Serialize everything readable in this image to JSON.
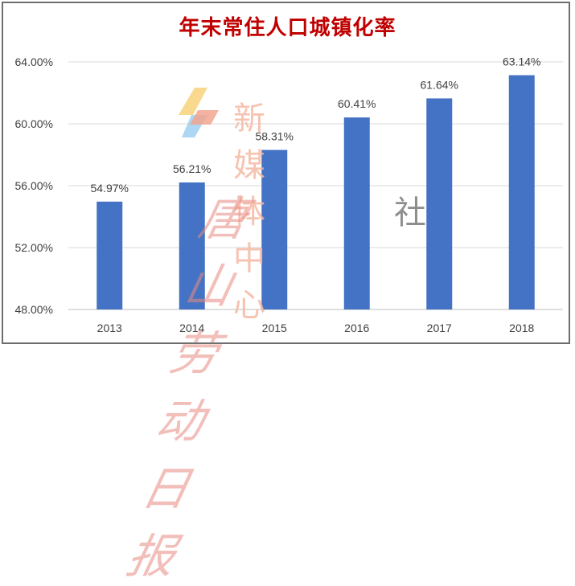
{
  "chart_data": {
    "type": "bar",
    "title": "年末常住人口城镇化率",
    "categories": [
      "2013",
      "2014",
      "2015",
      "2016",
      "2017",
      "2018"
    ],
    "values": [
      54.97,
      56.21,
      58.31,
      60.41,
      61.64,
      63.14
    ],
    "value_labels": [
      "54.97%",
      "56.21%",
      "58.31%",
      "60.41%",
      "61.64%",
      "63.14%"
    ],
    "ylim": [
      48,
      64
    ],
    "yticks": [
      48,
      52,
      56,
      60,
      64
    ],
    "ytick_labels": [
      "48.00%",
      "52.00%",
      "56.00%",
      "60.00%",
      "64.00%"
    ],
    "grid": true,
    "bar_color": "#4472c4",
    "title_color": "#c00000"
  },
  "watermark": {
    "media_center": "新媒体中心",
    "newspaper": "唐山劳动日报",
    "org": "社"
  }
}
